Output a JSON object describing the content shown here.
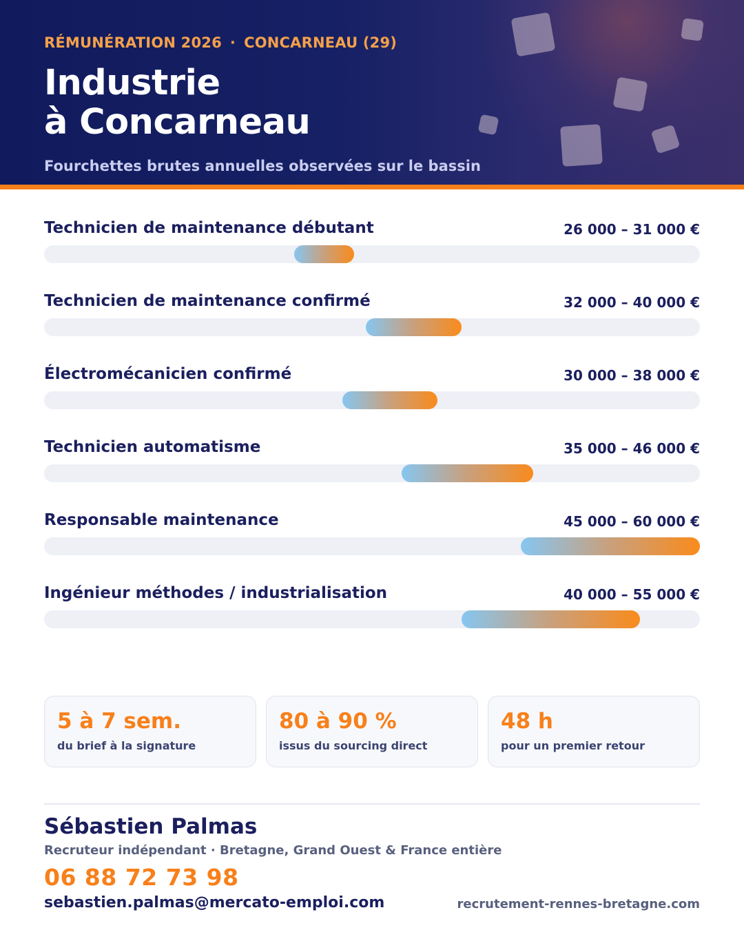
{
  "header": {
    "eyebrow_left": "RÉMUNÉRATION 2026",
    "eyebrow_separator": "·",
    "eyebrow_right": "CONCARNEAU (29)",
    "title_line1": "Industrie",
    "title_line2": "à Concarneau",
    "subtitle": "Fourchettes brutes annuelles observées sur le bassin"
  },
  "chart_data": {
    "type": "bar",
    "title": "",
    "xlabel": "",
    "ylabel": "",
    "unit": "€",
    "scale_max_estimate": 60000,
    "categories": [
      "Technicien de maintenance débutant",
      "Technicien de maintenance confirmé",
      "Électromécanicien confirmé",
      "Technicien automatisme",
      "Responsable maintenance",
      "Ingénieur méthodes / industrialisation"
    ],
    "ranges": [
      {
        "label": "Technicien de maintenance débutant",
        "min": 26000,
        "max": 31000,
        "range_text": "26 000 – 31 000 €"
      },
      {
        "label": "Technicien de maintenance confirmé",
        "min": 32000,
        "max": 40000,
        "range_text": "32 000 – 40 000 €"
      },
      {
        "label": "Électromécanicien confirmé",
        "min": 30000,
        "max": 38000,
        "range_text": "30 000 – 38 000 €"
      },
      {
        "label": "Technicien automatisme",
        "min": 35000,
        "max": 46000,
        "range_text": "35 000 – 46 000 €"
      },
      {
        "label": "Responsable maintenance",
        "min": 45000,
        "max": 60000,
        "range_text": "45 000 – 60 000 €"
      },
      {
        "label": "Ingénieur méthodes / industrialisation",
        "min": 40000,
        "max": 55000,
        "range_text": "40 000 – 55 000 €"
      }
    ],
    "colors": {
      "gradient_start": "#86c6f1",
      "gradient_end": "#f98b1c",
      "track": "#eef0f6"
    }
  },
  "stats": [
    {
      "value": "5 à 7 sem.",
      "label": "du brief à la signature"
    },
    {
      "value": "80 à 90 %",
      "label": "issus du sourcing direct"
    },
    {
      "value": "48 h",
      "label": "pour un premier retour"
    }
  ],
  "contact": {
    "name": "Sébastien Palmas",
    "role": "Recruteur indépendant · Bretagne, Grand Ouest & France entière",
    "phone": "06 88 72 73 98",
    "email": "sebastien.palmas@mercato-emploi.com",
    "website": "recrutement-rennes-bretagne.com"
  },
  "colors": {
    "navy": "#1b1f5e",
    "orange": "#f7801a",
    "header_bg": "#101a5c"
  }
}
